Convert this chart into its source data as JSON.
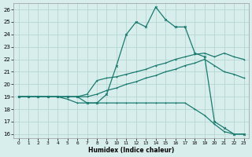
{
  "xlabel": "Humidex (Indice chaleur)",
  "xlim_min": -0.5,
  "xlim_max": 23.5,
  "ylim_min": 15.7,
  "ylim_max": 26.5,
  "yticks": [
    16,
    17,
    18,
    19,
    20,
    21,
    22,
    23,
    24,
    25,
    26
  ],
  "xticks": [
    0,
    1,
    2,
    3,
    4,
    5,
    6,
    7,
    8,
    9,
    10,
    11,
    12,
    13,
    14,
    15,
    16,
    17,
    18,
    19,
    20,
    21,
    22,
    23
  ],
  "bg_color": "#d8eeed",
  "grid_color": "#b5d5d3",
  "line_color": "#1a7a6e",
  "hours": [
    0,
    1,
    2,
    3,
    4,
    5,
    6,
    7,
    8,
    9,
    10,
    11,
    12,
    13,
    14,
    15,
    16,
    17,
    18,
    19,
    20,
    21,
    22,
    23
  ],
  "line_max": [
    19,
    19,
    19,
    19,
    19,
    19,
    19,
    18.5,
    18.5,
    19.2,
    21.5,
    24.0,
    25.0,
    24.6,
    26.2,
    25.2,
    24.6,
    24.6,
    22.5,
    22.2,
    17.0,
    16.5,
    16.0,
    16.0
  ],
  "line_min": [
    19,
    19,
    19,
    19,
    19,
    18.8,
    18.5,
    18.5,
    18.5,
    18.5,
    18.5,
    18.5,
    18.5,
    18.5,
    18.5,
    18.5,
    18.5,
    18.5,
    18.0,
    17.5,
    16.8,
    16.2,
    16.0,
    16.0
  ],
  "line_avg1": [
    19,
    19,
    19,
    19,
    19,
    19,
    19,
    19.2,
    20.3,
    20.5,
    20.6,
    20.8,
    21.0,
    21.2,
    21.5,
    21.7,
    22.0,
    22.2,
    22.4,
    22.5,
    22.2,
    22.5,
    22.2,
    22.0
  ],
  "line_avg2": [
    19,
    19,
    19,
    19,
    19,
    19,
    19,
    19.0,
    19.2,
    19.5,
    19.7,
    20.0,
    20.2,
    20.5,
    20.7,
    21.0,
    21.2,
    21.5,
    21.7,
    22.0,
    21.5,
    21.0,
    20.8,
    20.5
  ]
}
